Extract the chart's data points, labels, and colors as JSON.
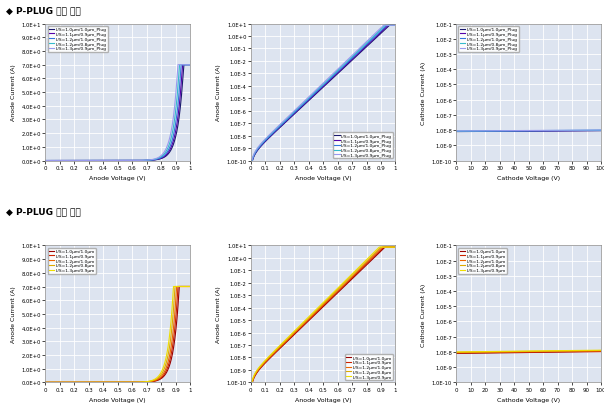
{
  "title_with_plug": "◆ P-PLUG 있는 경우",
  "title_without_plug": "◆ P-PLUG 없는 경우",
  "plug_colors": [
    "#1a1a6e",
    "#5500aa",
    "#3377dd",
    "#33bbcc",
    "#9999ee"
  ],
  "noplug_colors": [
    "#990000",
    "#cc2200",
    "#ee6600",
    "#ddaa00",
    "#eedd00"
  ],
  "plug_labels": [
    "L/S=1.0μm/1.0μm_Plug",
    "L/S=1.1μm/0.9μm_Plug",
    "L/S=1.2μm/1.0μm_Plug",
    "L/S=1.2μm/0.8μm_Plug",
    "L/S=1.3μm/0.9μm_Plug"
  ],
  "noplug_labels": [
    "L/S=1.0μm/1.0μm",
    "L/S=1.1μm/0.9μm",
    "L/S=1.2μm/1.0μm",
    "L/S=1.2μm/0.8μm",
    "L/S=1.3μm/0.9μm"
  ],
  "xlabel_anode": "Anode Voltage (V)",
  "xlabel_cathode": "Cathode Voltage (V)",
  "ylabel_anode": "Anode Current (A)",
  "ylabel_cathode": "Cathode Current (A)",
  "background_color": "#dde4f0",
  "fig_bg": "#ffffff",
  "plug_Is": [
    3e-10,
    3.2e-10,
    3.5e-10,
    4e-10,
    4.5e-10
  ],
  "plug_n": [
    1.55,
    1.54,
    1.53,
    1.52,
    1.51
  ],
  "plug_Imax": 7.0,
  "plug_Vclip": 0.78,
  "noplug_Is": [
    3e-10,
    3.2e-10,
    3.5e-10,
    4e-10,
    4.5e-10
  ],
  "noplug_n": [
    1.5,
    1.49,
    1.48,
    1.47,
    1.46
  ],
  "noplug_Imax": 7.0,
  "noplug_Vclip": 0.82,
  "plug_leak_base": [
    8e-09,
    8.2e-09,
    8.4e-09,
    8.6e-09,
    8.8e-09
  ],
  "noplug_leak_base": [
    8e-09,
    8.5e-09,
    9e-09,
    9.5e-09,
    1e-08
  ],
  "linear_yticks": [
    0,
    1,
    2,
    3,
    4,
    5,
    6,
    7,
    8,
    9,
    10
  ],
  "linear_ylabels": [
    "0.0E+0",
    "1.0E+0",
    "2.0E+0",
    "3.0E+0",
    "4.0E+0",
    "5.0E+0",
    "6.0E+0",
    "7.0E+0",
    "8.0E+0",
    "9.0E+0",
    "1.0E+1"
  ],
  "log_yticks_anode": [
    1e-10,
    1e-09,
    1e-08,
    1e-07,
    1e-06,
    1e-05,
    0.0001,
    0.001,
    0.01,
    0.1,
    1.0,
    10.0
  ],
  "log_ylabels_anode": [
    "1.0E-10",
    "1.0E-9",
    "1.0E-8",
    "1.0E-7",
    "1.0E-6",
    "1.0E-5",
    "1.0E-4",
    "1.0E-3",
    "1.0E-2",
    "1.0E-1",
    "1.0E+0",
    "1.0E+1"
  ],
  "log_yticks_cath": [
    1e-10,
    1e-09,
    1e-08,
    1e-07,
    1e-06,
    1e-05,
    0.0001,
    0.001,
    0.01,
    0.1
  ],
  "log_ylabels_cath": [
    "1.0E-10",
    "1.0E-9",
    "1.0E-8",
    "1.0E-7",
    "1.0E-6",
    "1.0E-5",
    "1.0E-4",
    "1.0E-3",
    "1.0E-2",
    "1.0E-1"
  ],
  "anode_xticks": [
    0,
    0.1,
    0.2,
    0.3,
    0.4,
    0.5,
    0.6,
    0.7,
    0.8,
    0.9,
    1.0
  ],
  "anode_xlabels": [
    "0",
    "0.1",
    "0.2",
    "0.3",
    "0.4",
    "0.5",
    "0.6",
    "0.7",
    "0.8",
    "0.9",
    "1"
  ],
  "cathode_xticks": [
    0,
    10,
    20,
    30,
    40,
    50,
    60,
    70,
    80,
    90,
    100
  ],
  "cathode_xlabels": [
    "0",
    "10",
    "20",
    "30",
    "40",
    "50",
    "60",
    "70",
    "80",
    "90",
    "100"
  ]
}
